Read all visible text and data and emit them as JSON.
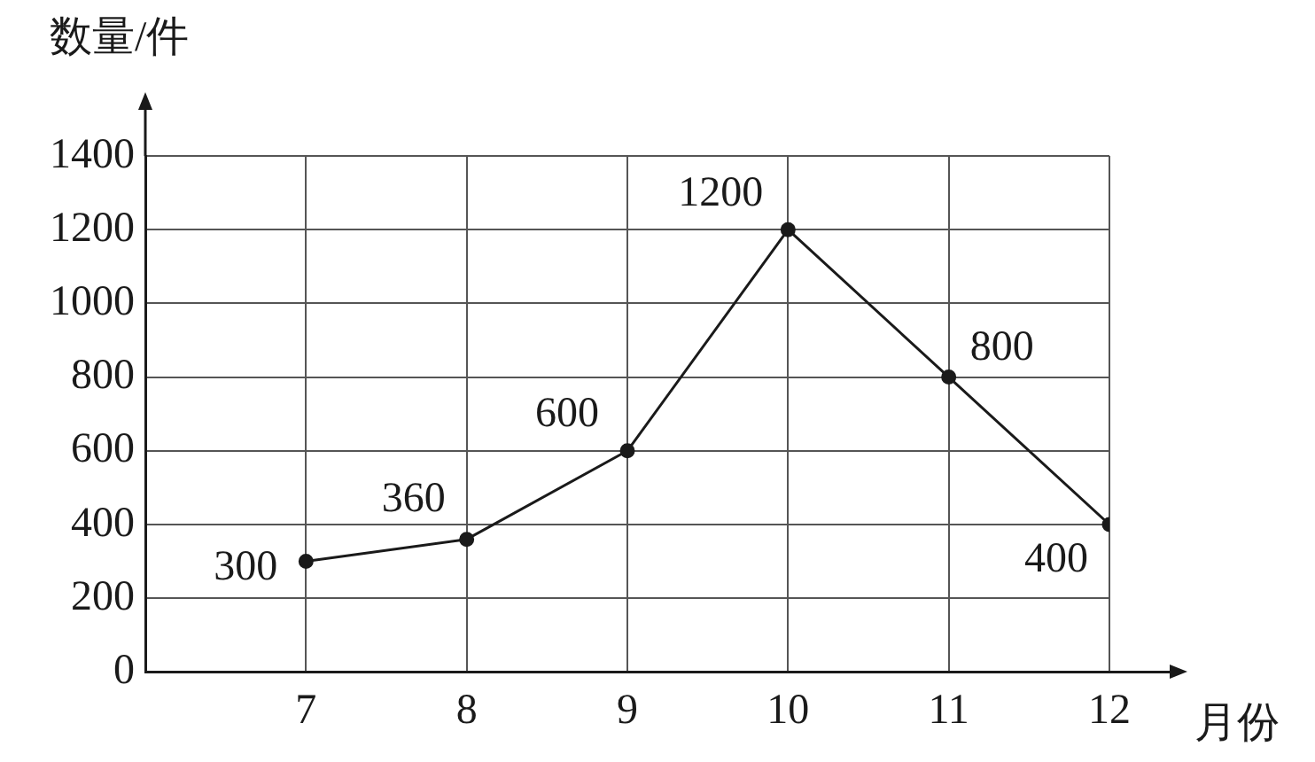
{
  "chart_data": {
    "type": "line",
    "xlabel": "月份",
    "ylabel": "数量/件",
    "x": [
      7,
      8,
      9,
      10,
      11,
      12
    ],
    "series": [
      {
        "color": "#1a1a1a",
        "values": [
          300,
          360,
          600,
          1200,
          800,
          400
        ]
      }
    ],
    "xlim": [
      6,
      12
    ],
    "xticks": [
      7,
      8,
      9,
      10,
      11,
      12
    ],
    "ylim": [
      0,
      1400
    ],
    "yticks": [
      0,
      200,
      400,
      600,
      800,
      1000,
      1200,
      1400
    ],
    "grid": true,
    "legend": false,
    "marker": "circle",
    "line_style": "solid",
    "data_labels": true
  }
}
